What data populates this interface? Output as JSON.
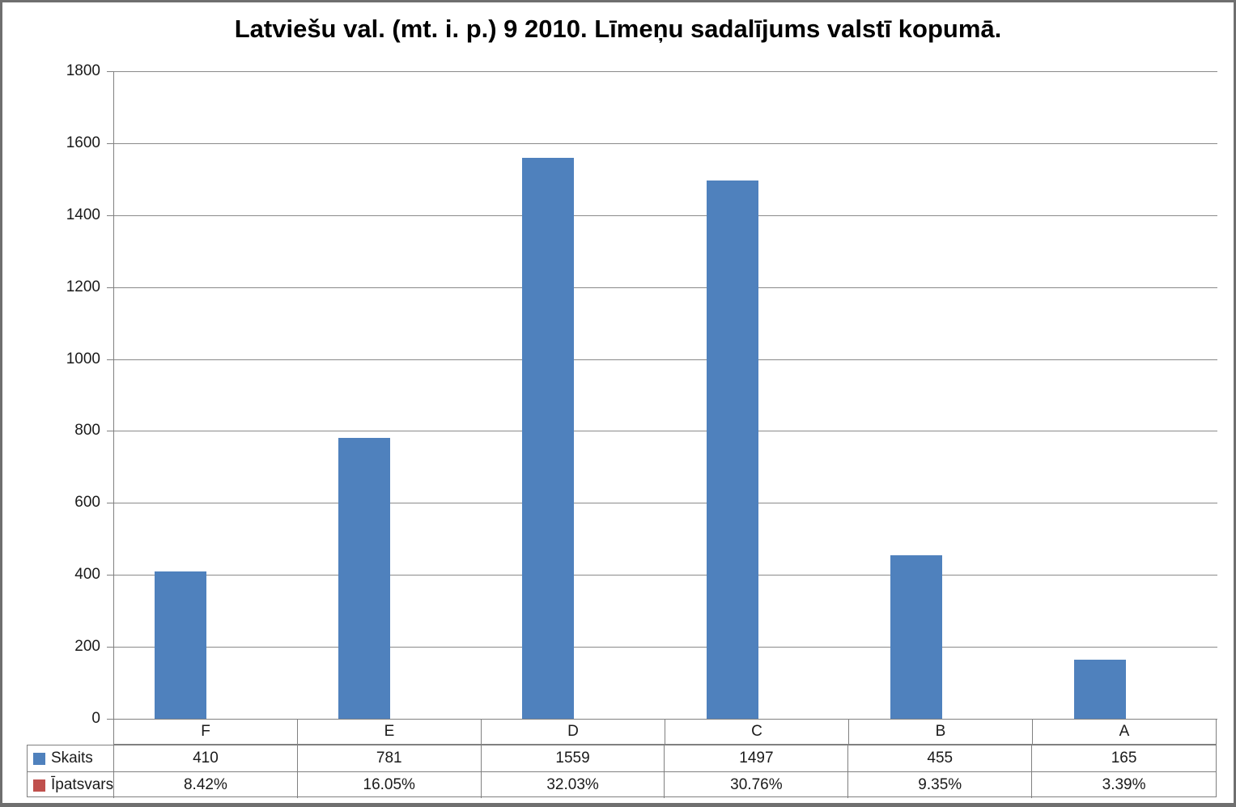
{
  "title": "Latviešu val. (mt. i. p.) 9 2010. Līmeņu sadalījums valstī kopumā.",
  "colors": {
    "bar_fill": "#4f81bd",
    "skaits_swatch": "#4f81bd",
    "ipatsvars_swatch": "#c0504d",
    "gridline": "#8a8a8a",
    "table_border": "#808080",
    "outer_border": "#6f6f6f"
  },
  "chart_data": {
    "type": "bar",
    "title": "Latviešu val. (mt. i. p.) 9 2010. Līmeņu sadalījums valstī kopumā.",
    "categories": [
      "F",
      "E",
      "D",
      "C",
      "B",
      "A"
    ],
    "series": [
      {
        "name": "Skaits",
        "values": [
          410,
          781,
          1559,
          1497,
          455,
          165
        ]
      },
      {
        "name": "Īpatsvars",
        "values": [
          "8.42%",
          "16.05%",
          "32.03%",
          "30.76%",
          "9.35%",
          "3.39%"
        ]
      }
    ],
    "xlabel": "",
    "ylabel": "",
    "ylim": [
      0,
      1800
    ],
    "ytick_step": 200,
    "yticks": [
      "1800",
      "1600",
      "1400",
      "1200",
      "1000",
      "800",
      "600",
      "400",
      "200",
      "0"
    ],
    "grid": true,
    "legend_position": "data-table-left"
  }
}
